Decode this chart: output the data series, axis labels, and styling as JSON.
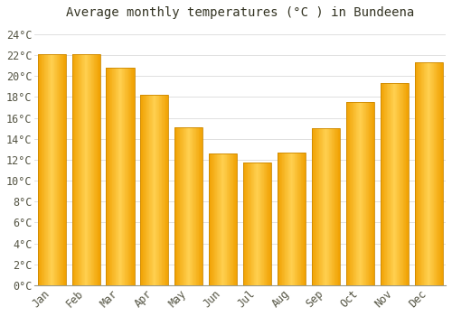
{
  "title": "Average monthly temperatures (°C ) in Bundeena",
  "months": [
    "Jan",
    "Feb",
    "Mar",
    "Apr",
    "May",
    "Jun",
    "Jul",
    "Aug",
    "Sep",
    "Oct",
    "Nov",
    "Dec"
  ],
  "temperatures": [
    22.1,
    22.1,
    20.8,
    18.2,
    15.1,
    12.6,
    11.7,
    12.7,
    15.0,
    17.5,
    19.3,
    21.3
  ],
  "bar_color_edge": "#F0A000",
  "bar_color_center": "#FFD050",
  "ylim": [
    0,
    25
  ],
  "ytick_max": 24,
  "ytick_step": 2,
  "background_color": "#FFFFFF",
  "grid_color": "#E0E0E0",
  "title_fontsize": 10,
  "tick_fontsize": 8.5,
  "bar_width": 0.82
}
